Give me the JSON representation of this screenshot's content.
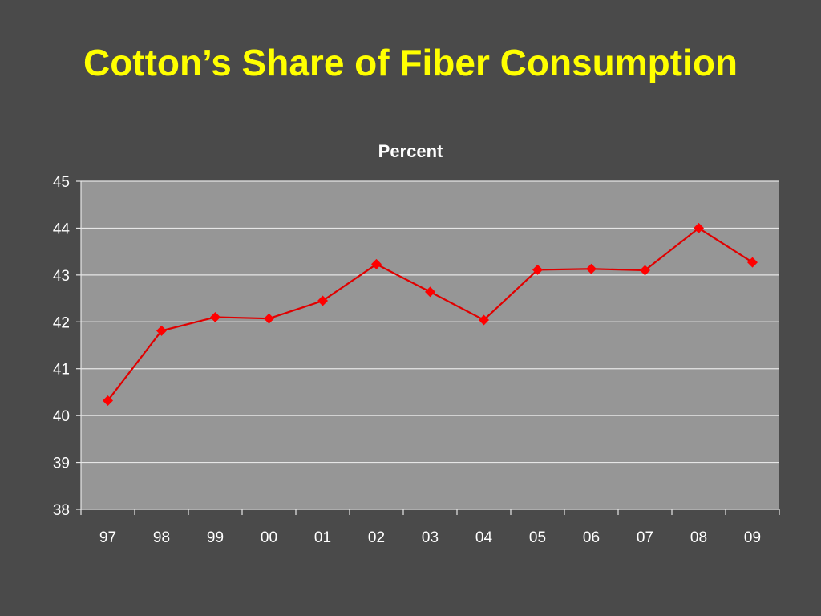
{
  "slide": {
    "title": "Cotton’s Share of Fiber Consumption"
  },
  "chart_data": {
    "type": "line",
    "title": "Percent",
    "xlabel": "",
    "ylabel": "",
    "categories": [
      "97",
      "98",
      "99",
      "00",
      "01",
      "02",
      "03",
      "04",
      "05",
      "06",
      "07",
      "08",
      "09"
    ],
    "series": [
      {
        "values": [
          40.32,
          41.81,
          42.1,
          42.07,
          42.45,
          43.23,
          42.64,
          42.04,
          43.11,
          43.13,
          43.1,
          44.0,
          43.27
        ]
      }
    ],
    "ylim": [
      38,
      45
    ],
    "yticks": [
      38,
      39,
      40,
      41,
      42,
      43,
      44,
      45
    ],
    "grid": true,
    "legend": "none",
    "colors": {
      "background": "#4a4a4a",
      "plot_area": "#969696",
      "gridline": "#e6e6e6",
      "line": "#e00000",
      "marker": "#ff0000",
      "title": "#ffff00",
      "text": "#ffffff"
    }
  }
}
